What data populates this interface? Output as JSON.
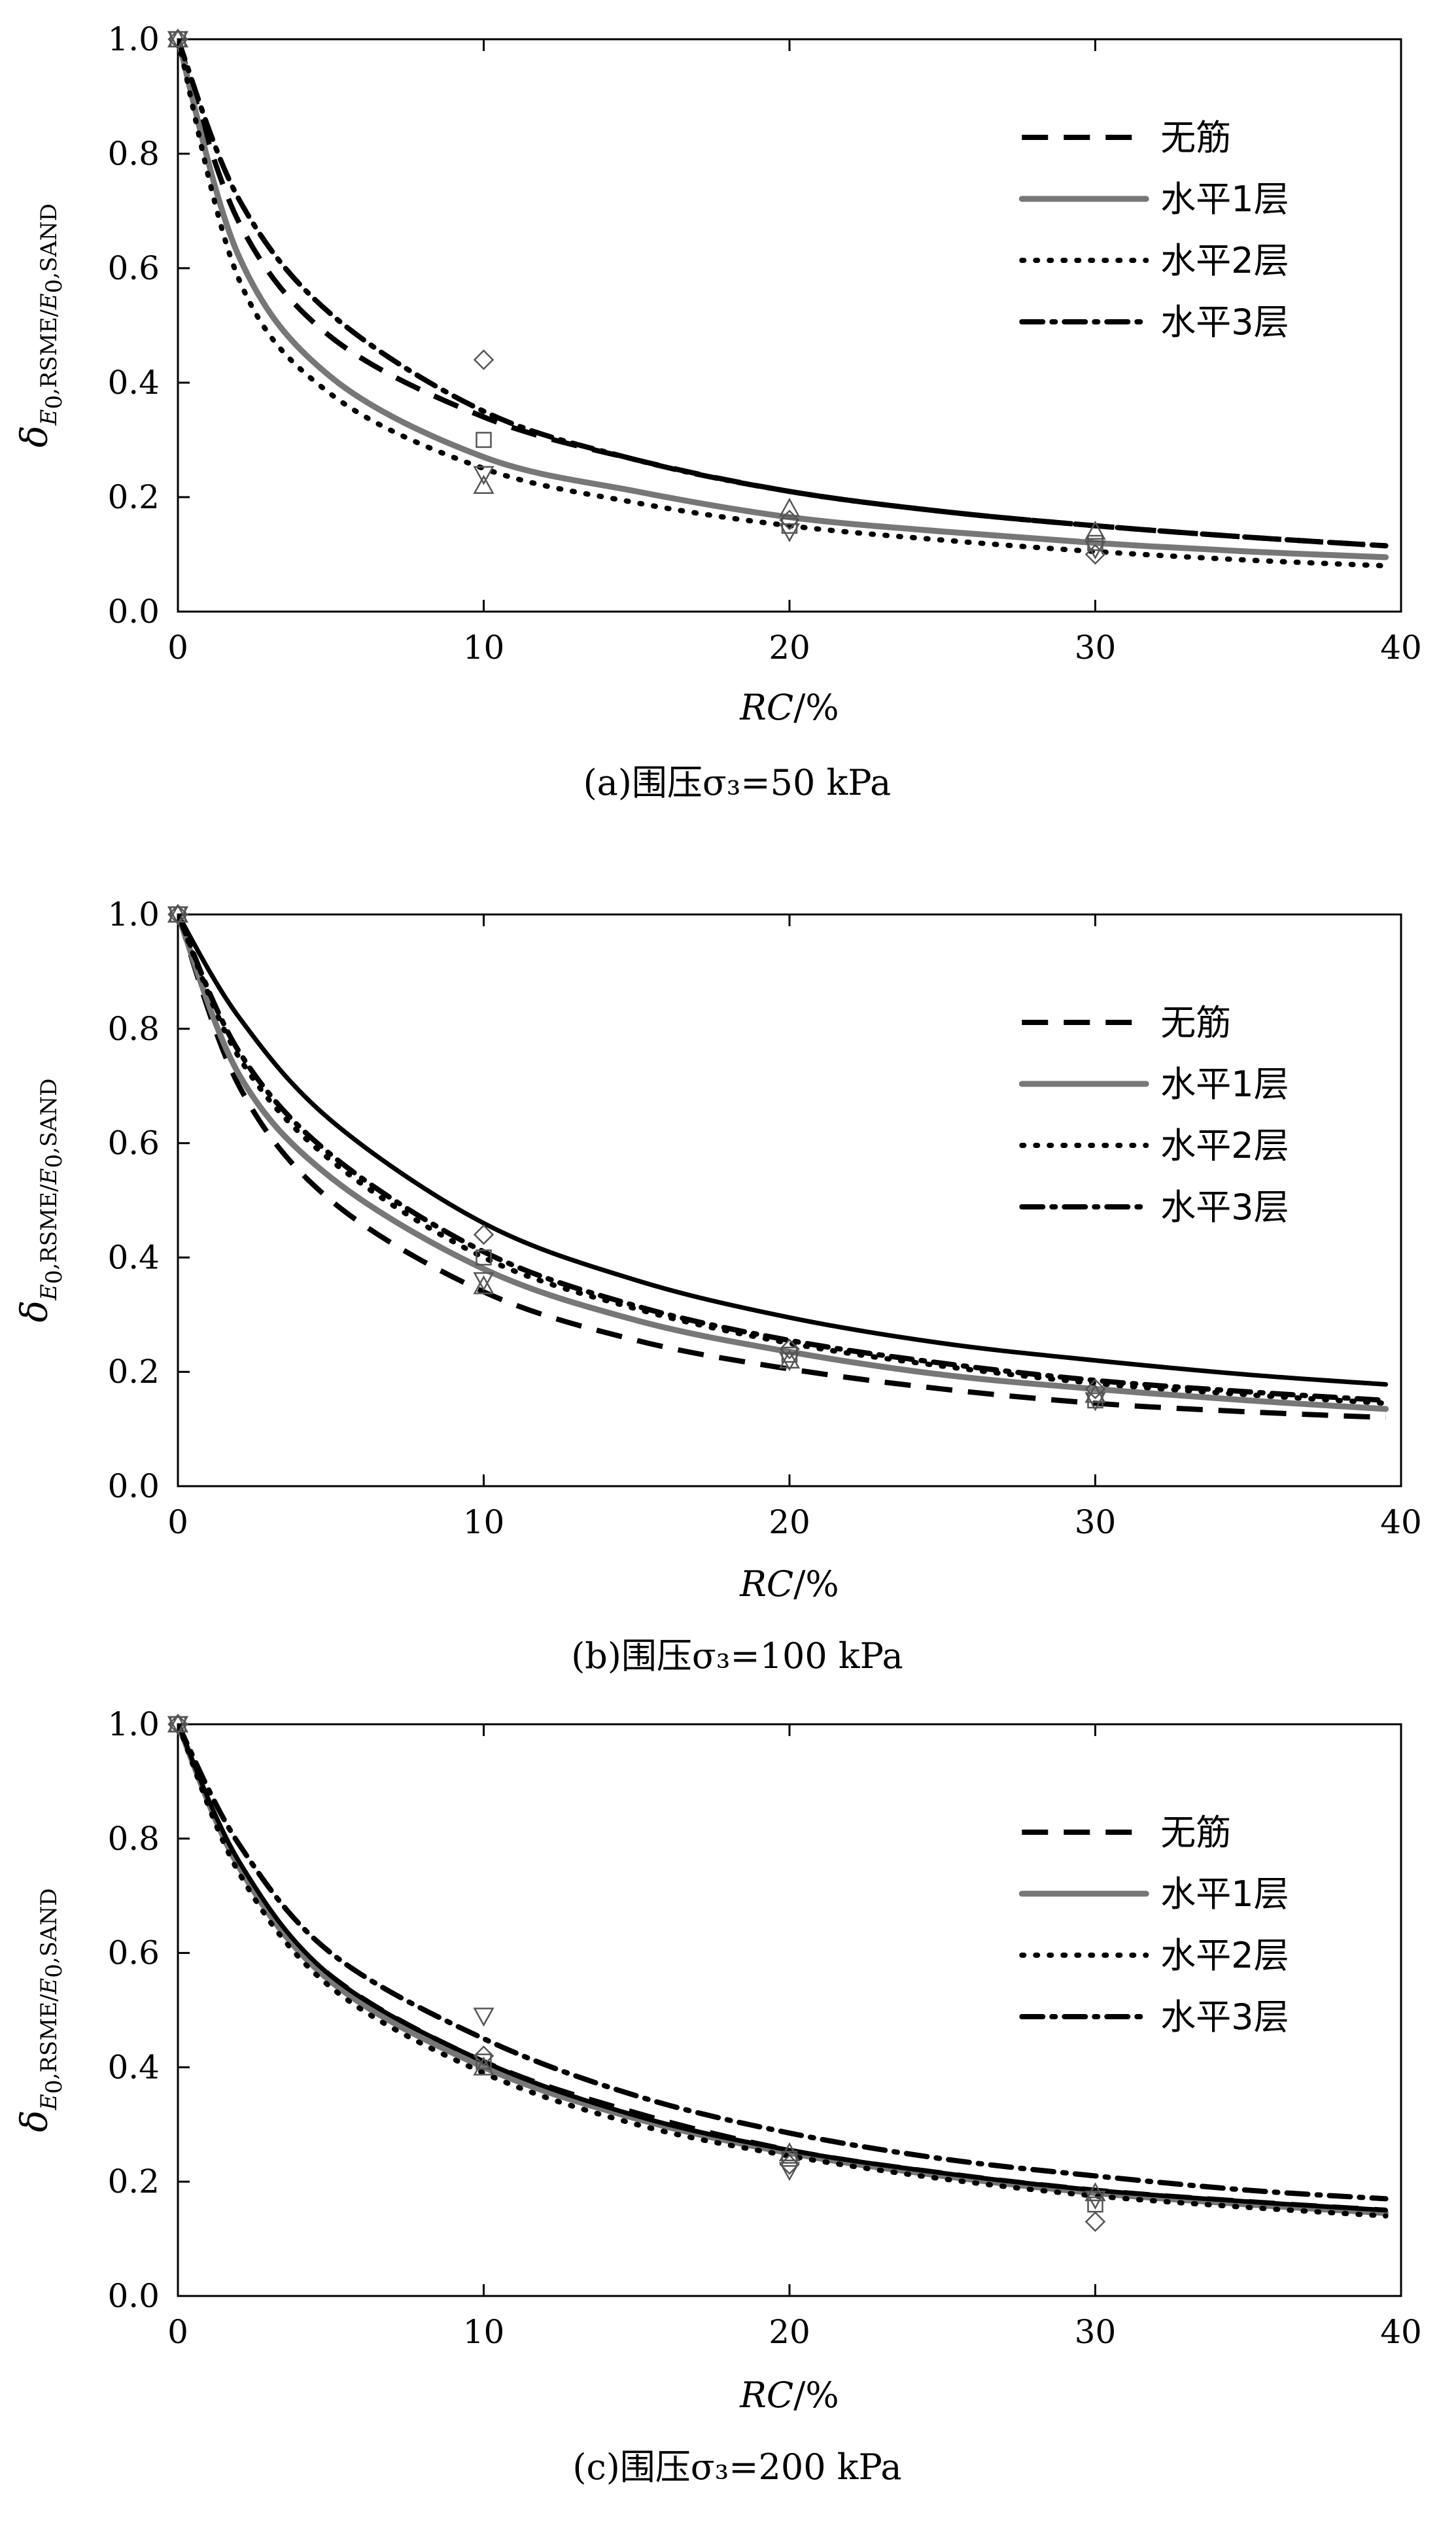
{
  "figure": {
    "ylabel_main": "δ",
    "ylabel_sub_E": "E",
    "ylabel_sub_0": "0",
    "ylabel_sub_mid": ",RSME/",
    "ylabel_sub_E2": "E",
    "ylabel_sub_02": "0",
    "ylabel_sub_end": ",SAND"
  },
  "chart_data": [
    {
      "type": "line",
      "title": "",
      "caption": "(a)围压σ₃=50 kPa",
      "xlabel_italic": "RC",
      "xlabel_rest": "/%",
      "xlim": [
        0,
        40
      ],
      "ylim": [
        0,
        1.0
      ],
      "xticks": [
        "0",
        "10",
        "20",
        "30",
        "40"
      ],
      "yticks": [
        "0.0",
        "0.2",
        "0.4",
        "0.6",
        "0.8",
        "1.0"
      ],
      "grid": false,
      "legend_position": "top-right",
      "series": [
        {
          "name": "无筋",
          "style": "dash",
          "color": "#000000",
          "x": [
            0,
            2,
            5,
            10,
            15,
            20,
            25,
            30,
            35,
            39.5
          ],
          "y": [
            1.0,
            0.68,
            0.48,
            0.34,
            0.265,
            0.21,
            0.175,
            0.15,
            0.13,
            0.115
          ]
        },
        {
          "name": "水平1层",
          "style": "solid-gray",
          "color": "#777777",
          "x": [
            0,
            2,
            5,
            10,
            15,
            20,
            25,
            30,
            35,
            39.5
          ],
          "y": [
            1.0,
            0.62,
            0.41,
            0.27,
            0.21,
            0.165,
            0.14,
            0.12,
            0.105,
            0.095
          ]
        },
        {
          "name": "水平2层",
          "style": "dot",
          "color": "#000000",
          "x": [
            0,
            2,
            5,
            10,
            15,
            20,
            25,
            30,
            35,
            39.5
          ],
          "y": [
            1.0,
            0.58,
            0.38,
            0.25,
            0.19,
            0.15,
            0.125,
            0.105,
            0.09,
            0.08
          ]
        },
        {
          "name": "水平3层",
          "style": "dashdot",
          "color": "#000000",
          "x": [
            0,
            2,
            5,
            10,
            15,
            20,
            25,
            30,
            35,
            39.5
          ],
          "y": [
            1.0,
            0.72,
            0.52,
            0.35,
            0.265,
            0.21,
            0.175,
            0.15,
            0.13,
            0.115
          ]
        }
      ],
      "markers": [
        {
          "shape": "diamond",
          "points": [
            [
              0,
              1.0
            ],
            [
              10,
              0.44
            ],
            [
              20,
              0.16
            ],
            [
              30,
              0.1
            ]
          ]
        },
        {
          "shape": "square",
          "points": [
            [
              0,
              1.0
            ],
            [
              10,
              0.3
            ],
            [
              20,
              0.15
            ],
            [
              30,
              0.12
            ]
          ]
        },
        {
          "shape": "triangle-up",
          "points": [
            [
              0,
              1.0
            ],
            [
              10,
              0.22
            ],
            [
              20,
              0.18
            ],
            [
              30,
              0.14
            ]
          ]
        },
        {
          "shape": "triangle-down",
          "points": [
            [
              0,
              1.0
            ],
            [
              10,
              0.24
            ],
            [
              20,
              0.14
            ],
            [
              30,
              0.11
            ]
          ]
        }
      ]
    },
    {
      "type": "line",
      "title": "",
      "caption": "(b)围压σ₃=100 kPa",
      "xlabel_italic": "RC",
      "xlabel_rest": "/%",
      "xlim": [
        0,
        40
      ],
      "ylim": [
        0,
        1.0
      ],
      "xticks": [
        "0",
        "10",
        "20",
        "30",
        "40"
      ],
      "yticks": [
        "0.0",
        "0.2",
        "0.4",
        "0.6",
        "0.8",
        "1.0"
      ],
      "grid": false,
      "legend_position": "top-right",
      "series": [
        {
          "name": "无筋",
          "style": "dash",
          "color": "#000000",
          "x": [
            0,
            2,
            5,
            10,
            15,
            20,
            25,
            30,
            35,
            39.5
          ],
          "y": [
            1.0,
            0.7,
            0.5,
            0.34,
            0.255,
            0.205,
            0.17,
            0.145,
            0.13,
            0.12
          ]
        },
        {
          "name": "水平1层",
          "style": "solid-gray",
          "color": "#777777",
          "x": [
            0,
            2,
            5,
            10,
            15,
            20,
            25,
            30,
            35,
            39.5
          ],
          "y": [
            1.0,
            0.72,
            0.54,
            0.38,
            0.29,
            0.235,
            0.195,
            0.17,
            0.15,
            0.135
          ]
        },
        {
          "name": "水平2层",
          "style": "dot",
          "color": "#000000",
          "x": [
            0,
            2,
            5,
            10,
            15,
            20,
            25,
            30,
            35,
            39.5
          ],
          "y": [
            1.0,
            0.75,
            0.57,
            0.4,
            0.31,
            0.25,
            0.21,
            0.18,
            0.16,
            0.145
          ]
        },
        {
          "name": "水平3层",
          "style": "dashdot",
          "color": "#000000",
          "x": [
            0,
            2,
            5,
            10,
            15,
            20,
            25,
            30,
            35,
            39.5
          ],
          "y": [
            1.0,
            0.76,
            0.58,
            0.41,
            0.315,
            0.255,
            0.215,
            0.185,
            0.165,
            0.15
          ]
        },
        {
          "name": "",
          "style": "solid-black",
          "color": "#000000",
          "x": [
            0,
            2,
            5,
            10,
            15,
            20,
            25,
            30,
            35,
            39.5
          ],
          "y": [
            1.0,
            0.82,
            0.64,
            0.46,
            0.36,
            0.295,
            0.25,
            0.22,
            0.195,
            0.178
          ]
        }
      ],
      "markers": [
        {
          "shape": "diamond",
          "points": [
            [
              0,
              1.0
            ],
            [
              10,
              0.44
            ],
            [
              20,
              0.24
            ],
            [
              30,
              0.17
            ]
          ]
        },
        {
          "shape": "square",
          "points": [
            [
              0,
              1.0
            ],
            [
              10,
              0.4
            ],
            [
              20,
              0.23
            ],
            [
              30,
              0.15
            ]
          ]
        },
        {
          "shape": "triangle-up",
          "points": [
            [
              0,
              1.0
            ],
            [
              10,
              0.35
            ],
            [
              20,
              0.22
            ],
            [
              30,
              0.16
            ]
          ]
        },
        {
          "shape": "triangle-down",
          "points": [
            [
              0,
              1.0
            ],
            [
              10,
              0.36
            ],
            [
              20,
              0.22
            ],
            [
              30,
              0.15
            ]
          ]
        }
      ]
    },
    {
      "type": "line",
      "title": "",
      "caption": "(c)围压σ₃=200 kPa",
      "xlabel_italic": "RC",
      "xlabel_rest": "/%",
      "xlim": [
        0,
        40
      ],
      "ylim": [
        0,
        1.0
      ],
      "xticks": [
        "0",
        "10",
        "20",
        "30",
        "40"
      ],
      "yticks": [
        "0.0",
        "0.2",
        "0.4",
        "0.6",
        "0.8",
        "1.0"
      ],
      "grid": false,
      "legend_position": "top-right",
      "series": [
        {
          "name": "无筋",
          "style": "dash",
          "color": "#000000",
          "x": [
            0,
            2,
            5,
            10,
            15,
            20,
            25,
            30,
            35,
            39.5
          ],
          "y": [
            1.0,
            0.75,
            0.56,
            0.41,
            0.32,
            0.255,
            0.215,
            0.185,
            0.165,
            0.15
          ]
        },
        {
          "name": "水平1层",
          "style": "solid-gray",
          "color": "#777777",
          "x": [
            0,
            2,
            5,
            10,
            15,
            20,
            25,
            30,
            35,
            39.5
          ],
          "y": [
            1.0,
            0.75,
            0.55,
            0.4,
            0.31,
            0.25,
            0.21,
            0.18,
            0.16,
            0.145
          ]
        },
        {
          "name": "水平2层",
          "style": "dot",
          "color": "#000000",
          "x": [
            0,
            2,
            5,
            10,
            15,
            20,
            25,
            30,
            35,
            39.5
          ],
          "y": [
            1.0,
            0.74,
            0.54,
            0.39,
            0.3,
            0.245,
            0.205,
            0.175,
            0.155,
            0.14
          ]
        },
        {
          "name": "水平3层",
          "style": "dashdot",
          "color": "#000000",
          "x": [
            0,
            2,
            5,
            10,
            15,
            20,
            25,
            30,
            35,
            39.5
          ],
          "y": [
            1.0,
            0.79,
            0.6,
            0.45,
            0.35,
            0.285,
            0.24,
            0.21,
            0.185,
            0.17
          ]
        },
        {
          "name": "",
          "style": "solid-black",
          "color": "#000000",
          "x": [
            0,
            2,
            5,
            10,
            15,
            20,
            25,
            30,
            35,
            39.5
          ],
          "y": [
            1.0,
            0.76,
            0.56,
            0.41,
            0.315,
            0.255,
            0.215,
            0.185,
            0.165,
            0.15
          ]
        }
      ],
      "markers": [
        {
          "shape": "diamond",
          "points": [
            [
              0,
              1.0
            ],
            [
              10,
              0.42
            ],
            [
              20,
              0.23
            ],
            [
              30,
              0.13
            ]
          ]
        },
        {
          "shape": "square",
          "points": [
            [
              0,
              1.0
            ],
            [
              10,
              0.41
            ],
            [
              20,
              0.24
            ],
            [
              30,
              0.16
            ]
          ]
        },
        {
          "shape": "triangle-up",
          "points": [
            [
              0,
              1.0
            ],
            [
              10,
              0.4
            ],
            [
              20,
              0.25
            ],
            [
              30,
              0.18
            ]
          ]
        },
        {
          "shape": "triangle-down",
          "points": [
            [
              0,
              1.0
            ],
            [
              10,
              0.49
            ],
            [
              20,
              0.22
            ],
            [
              30,
              0.17
            ]
          ]
        }
      ]
    }
  ]
}
